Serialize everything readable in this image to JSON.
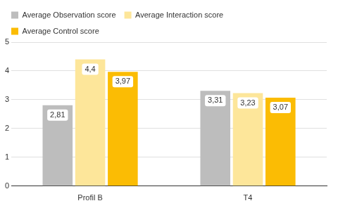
{
  "chart_data": {
    "type": "bar",
    "categories": [
      "Profil B",
      "T4"
    ],
    "series": [
      {
        "name": "Average Observation score",
        "color": "#bdbdbd",
        "values": [
          2.81,
          3.31
        ],
        "value_labels": [
          "2,81",
          "3,31"
        ]
      },
      {
        "name": "Average Interaction score",
        "color": "#fde69a",
        "values": [
          4.4,
          3.23
        ],
        "value_labels": [
          "4,4",
          "3,23"
        ]
      },
      {
        "name": "Average Control score",
        "color": "#fbbc04",
        "values": [
          3.97,
          3.07
        ],
        "value_labels": [
          "3,97",
          "3,07"
        ]
      }
    ],
    "ylim": [
      0,
      5
    ],
    "yticks": [
      0,
      1,
      2,
      3,
      4,
      5
    ],
    "grid": true,
    "legend": "top-left",
    "data_labels": true
  }
}
